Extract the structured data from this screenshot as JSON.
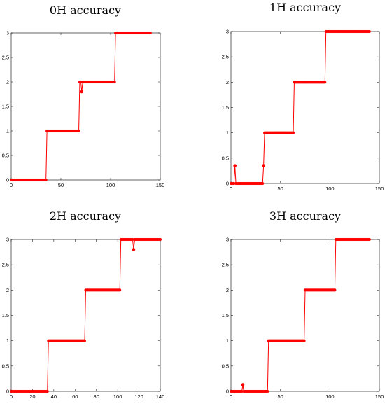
{
  "chart_data": [
    {
      "type": "line",
      "title": "0H accuracy",
      "xlim": [
        0,
        150
      ],
      "ylim": [
        0,
        3
      ],
      "xticks": [
        0,
        50,
        100,
        150
      ],
      "yticks": [
        0,
        0.5,
        1,
        1.5,
        2,
        2.5,
        3
      ],
      "ytick_labels": [
        "0",
        "0.5",
        "1",
        "1.5",
        "2",
        "2.5",
        "3"
      ],
      "series_color": "#ff0000",
      "n": 141,
      "levels": [
        {
          "from": 0,
          "to": 35,
          "y": 0
        },
        {
          "from": 36,
          "to": 68,
          "y": 1
        },
        {
          "from": 69,
          "to": 104,
          "y": 2
        },
        {
          "from": 105,
          "to": 140,
          "y": 3
        }
      ],
      "outliers": [
        {
          "x": 71,
          "y": 1.8
        }
      ]
    },
    {
      "type": "line",
      "title": "1H accuracy",
      "xlim": [
        0,
        150
      ],
      "ylim": [
        0,
        3
      ],
      "xticks": [
        0,
        50,
        100,
        150
      ],
      "yticks": [
        0,
        0.5,
        1,
        1.5,
        2,
        2.5,
        3
      ],
      "ytick_labels": [
        "0",
        "0.5",
        "1",
        "1.5",
        "2",
        "2.5",
        "3"
      ],
      "series_color": "#ff0000",
      "n": 141,
      "levels": [
        {
          "from": 0,
          "to": 32,
          "y": 0
        },
        {
          "from": 33,
          "to": 63,
          "y": 1
        },
        {
          "from": 64,
          "to": 95,
          "y": 2
        },
        {
          "from": 96,
          "to": 140,
          "y": 3
        }
      ],
      "outliers": [
        {
          "x": 4,
          "y": 0.35
        },
        {
          "x": 33,
          "y": 0.35
        }
      ]
    },
    {
      "type": "line",
      "title": "2H accuracy",
      "xlim": [
        0,
        140
      ],
      "ylim": [
        0,
        3
      ],
      "xticks": [
        0,
        20,
        40,
        60,
        80,
        100,
        120,
        140
      ],
      "yticks": [
        0,
        0.5,
        1,
        1.5,
        2,
        2.5,
        3
      ],
      "ytick_labels": [
        "0",
        "0.5",
        "1",
        "1.5",
        "2",
        "2.5",
        "3"
      ],
      "series_color": "#ff0000",
      "n": 141,
      "levels": [
        {
          "from": 0,
          "to": 34,
          "y": 0
        },
        {
          "from": 35,
          "to": 69,
          "y": 1
        },
        {
          "from": 70,
          "to": 102,
          "y": 2
        },
        {
          "from": 103,
          "to": 140,
          "y": 3
        }
      ],
      "outliers": [
        {
          "x": 115,
          "y": 2.8
        }
      ]
    },
    {
      "type": "line",
      "title": "3H accuracy",
      "xlim": [
        0,
        150
      ],
      "ylim": [
        0,
        3
      ],
      "xticks": [
        0,
        50,
        100,
        150
      ],
      "yticks": [
        0,
        0.5,
        1,
        1.5,
        2,
        2.5,
        3
      ],
      "ytick_labels": [
        "0",
        "0.5",
        "1",
        "1.5",
        "2",
        "2.5",
        "3"
      ],
      "series_color": "#ff0000",
      "n": 141,
      "levels": [
        {
          "from": 0,
          "to": 37,
          "y": 0
        },
        {
          "from": 38,
          "to": 74,
          "y": 1
        },
        {
          "from": 75,
          "to": 105,
          "y": 2
        },
        {
          "from": 106,
          "to": 140,
          "y": 3
        }
      ],
      "outliers": [
        {
          "x": 12,
          "y": 0.13
        }
      ]
    }
  ]
}
